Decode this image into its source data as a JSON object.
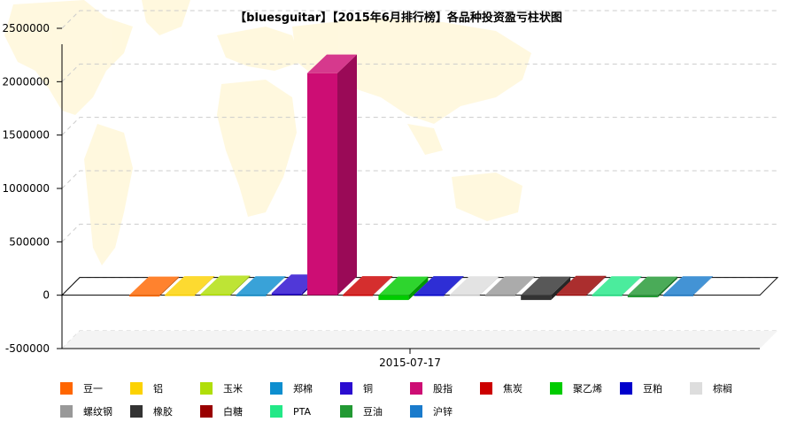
{
  "chart_data": {
    "type": "bar",
    "title": "【bluesguitar】【2015年6月排行榜】各品种投资盈亏柱状图",
    "categories": [
      "2015-07-17"
    ],
    "ylim": [
      -500000,
      2500000
    ],
    "yticks": [
      "2500000",
      "2000000",
      "1500000",
      "1000000",
      "500000",
      "0",
      "-500000"
    ],
    "grid": true,
    "legend_position": "bottom",
    "style": "3d",
    "series": [
      {
        "name": "豆一",
        "color": "#ff6600",
        "values": [
          -10000
        ]
      },
      {
        "name": "铝",
        "color": "#fcd202",
        "values": [
          5000
        ]
      },
      {
        "name": "玉米",
        "color": "#b0de09",
        "values": [
          10000
        ]
      },
      {
        "name": "郑棉",
        "color": "#0d8ecf",
        "values": [
          3000
        ]
      },
      {
        "name": "铜",
        "color": "#2a0cd0",
        "values": [
          20000
        ]
      },
      {
        "name": "股指",
        "color": "#cd0d74",
        "values": [
          2080000
        ]
      },
      {
        "name": "焦炭",
        "color": "#cc0000",
        "values": [
          5000
        ]
      },
      {
        "name": "聚乙烯",
        "color": "#00cc00",
        "values": [
          -45000
        ]
      },
      {
        "name": "豆粕",
        "color": "#0000cc",
        "values": [
          5000
        ]
      },
      {
        "name": "棕榈",
        "color": "#dddddd",
        "values": [
          3000
        ]
      },
      {
        "name": "螺纹钢",
        "color": "#999999",
        "values": [
          3000
        ]
      },
      {
        "name": "橡胶",
        "color": "#333333",
        "values": [
          -45000
        ]
      },
      {
        "name": "白糖",
        "color": "#990000",
        "values": [
          8000
        ]
      },
      {
        "name": "PTA",
        "color": "#23e887",
        "values": [
          3000
        ]
      },
      {
        "name": "豆油",
        "color": "#229933",
        "values": [
          -20000
        ]
      },
      {
        "name": "沪锌",
        "color": "#1a7bcc",
        "values": [
          3000
        ]
      }
    ]
  }
}
